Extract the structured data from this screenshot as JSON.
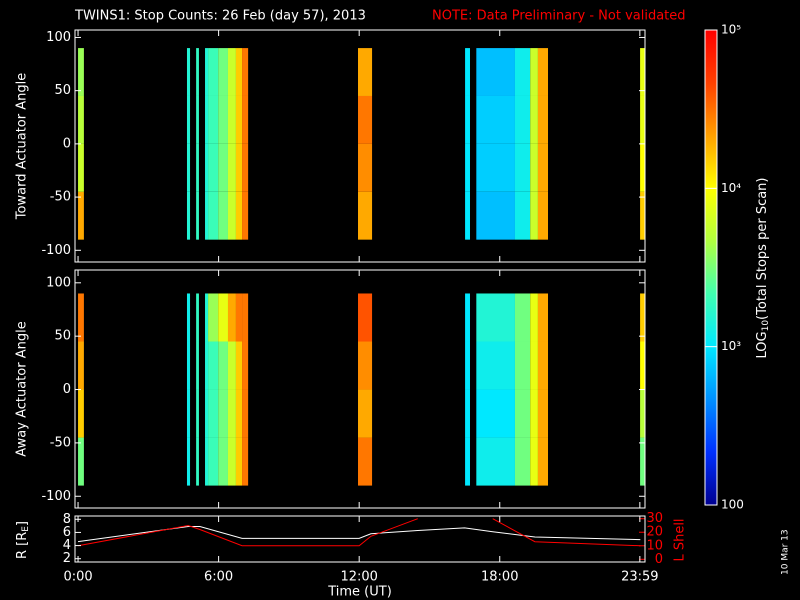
{
  "header": {
    "title": "TWINS1: Stop Counts: 26 Feb (day  57), 2013",
    "note": "NOTE: Data Preliminary - Not validated",
    "date_stamp": "10 Mar 13"
  },
  "chart_data": [
    {
      "type": "heatmap",
      "ylabel": "Toward Actuator Angle",
      "xlim": [
        -0.13,
        24.2
      ],
      "ylim": [
        -111,
        107
      ],
      "yticks": [
        -100,
        -50,
        0,
        50,
        100
      ],
      "angle_bins": [
        -90,
        -45,
        0,
        45,
        90
      ],
      "time_bins": [
        [
          0,
          0.25
        ],
        [
          4.65,
          4.78
        ],
        [
          5.04,
          5.16
        ],
        [
          5.42,
          5.55
        ],
        [
          5.55,
          5.98
        ],
        [
          5.98,
          6.4
        ],
        [
          6.4,
          6.74
        ],
        [
          6.74,
          7.0
        ],
        [
          7.0,
          7.26
        ],
        [
          11.95,
          12.55
        ],
        [
          16.52,
          16.73
        ],
        [
          17.0,
          18.65
        ],
        [
          18.65,
          19.3
        ],
        [
          19.3,
          19.63
        ],
        [
          19.63,
          20.06
        ],
        [
          23.99,
          24.2
        ]
      ],
      "values": [
        [
          20000,
          6000,
          5000,
          4000
        ],
        [
          1500,
          1500,
          1500,
          1500
        ],
        [
          1800,
          1800,
          1800,
          1800
        ],
        [
          1500,
          1500,
          1500,
          1500
        ],
        [
          2000,
          2000,
          2000,
          2000
        ],
        [
          3000,
          3000,
          3000,
          3000
        ],
        [
          6000,
          6000,
          6000,
          6000
        ],
        [
          15000,
          15000,
          15000,
          15000
        ],
        [
          30000,
          30000,
          30000,
          30000
        ],
        [
          20000,
          25000,
          30000,
          20000
        ],
        [
          1000,
          1000,
          1000,
          1000
        ],
        [
          700,
          800,
          800,
          700
        ],
        [
          1200,
          1200,
          1200,
          1200
        ],
        [
          6000,
          6000,
          6000,
          6000
        ],
        [
          20000,
          20000,
          20000,
          20000
        ],
        [
          15000,
          10000,
          8000,
          8000
        ]
      ],
      "colorbar": {
        "label_parts": [
          "LOG",
          "10",
          "(Total Stops per Scan)"
        ],
        "log": true,
        "zlim": [
          100,
          100000
        ],
        "zticks": [
          100,
          {
            "value": 1000,
            "label": "10³"
          },
          {
            "value": 10000,
            "label": "10⁴"
          },
          {
            "value": 100000,
            "label": "10⁵"
          }
        ],
        "colormap": [
          "#000090",
          "#0030ff",
          "#0090ff",
          "#00e8ff",
          "#40ffb0",
          "#b0ff40",
          "#ffff00",
          "#ffa000",
          "#ff4000",
          "#ff0000"
        ]
      }
    },
    {
      "type": "heatmap",
      "ylabel": "Away Actuator Angle",
      "xlim": [
        -0.13,
        24.2
      ],
      "ylim": [
        -111,
        112
      ],
      "yticks": [
        -100,
        -50,
        0,
        50,
        100
      ],
      "angle_bins": [
        -90,
        -45,
        0,
        45,
        90
      ],
      "time_bins": [
        [
          0,
          0.25
        ],
        [
          4.65,
          4.78
        ],
        [
          5.04,
          5.16
        ],
        [
          5.42,
          5.55
        ],
        [
          5.55,
          5.98
        ],
        [
          5.98,
          6.4
        ],
        [
          6.4,
          6.74
        ],
        [
          6.74,
          7.0
        ],
        [
          7.0,
          7.26
        ],
        [
          11.95,
          12.55
        ],
        [
          16.52,
          16.73
        ],
        [
          17.0,
          18.65
        ],
        [
          18.65,
          19.3
        ],
        [
          19.3,
          19.63
        ],
        [
          19.63,
          20.06
        ],
        [
          23.99,
          24.2
        ]
      ],
      "values": [
        [
          3000,
          15000,
          20000,
          30000
        ],
        [
          1200,
          1200,
          1200,
          1200
        ],
        [
          1800,
          1800,
          1800,
          1800
        ],
        [
          1500,
          1500,
          1500,
          1500
        ],
        [
          2000,
          2000,
          2000,
          4000
        ],
        [
          3000,
          3000,
          3000,
          8000
        ],
        [
          6000,
          6000,
          6000,
          20000
        ],
        [
          15000,
          15000,
          15000,
          30000
        ],
        [
          30000,
          30000,
          30000,
          30000
        ],
        [
          30000,
          20000,
          25000,
          40000
        ],
        [
          1000,
          1000,
          1000,
          1000
        ],
        [
          1200,
          1000,
          1200,
          1500
        ],
        [
          3000,
          3000,
          3000,
          3000
        ],
        [
          8000,
          8000,
          8000,
          8000
        ],
        [
          20000,
          20000,
          20000,
          20000
        ],
        [
          3000,
          5000,
          10000,
          15000
        ]
      ]
    },
    {
      "type": "line",
      "xlabel": "Time (UT)",
      "xlim": [
        -0.13,
        24.2
      ],
      "xticks": [
        {
          "value": 0,
          "label": "0:00"
        },
        {
          "value": 6,
          "label": "6:00"
        },
        {
          "value": 12,
          "label": "12:00"
        },
        {
          "value": 18,
          "label": "18:00"
        },
        {
          "value": 23.98,
          "label": "23:59"
        }
      ],
      "ylabel_parts": [
        "R [R",
        "E",
        "]"
      ],
      "ylim": [
        1.5,
        8.5
      ],
      "yticks": [
        2,
        4,
        6,
        8
      ],
      "y2label": "L Shell",
      "y2color": "#ff0000",
      "y2lim": [
        -2,
        32
      ],
      "y2ticks": [
        0,
        10,
        20,
        30
      ],
      "x": [
        0,
        4.7,
        5.2,
        7.0,
        12.0,
        12.5,
        14.5,
        16.5,
        17.7,
        19.5,
        24.0
      ],
      "series": [
        {
          "color": "#ffffff",
          "values": [
            4.6,
            6.9,
            6.9,
            5.1,
            5.1,
            5.8,
            6.3,
            6.7,
            6.1,
            5.3,
            4.9
          ]
        },
        {
          "color": "#ff0000",
          "axis": "y2",
          "values": [
            10,
            25,
            22,
            10,
            10,
            17,
            30,
            null,
            30,
            13,
            10
          ]
        }
      ]
    }
  ]
}
